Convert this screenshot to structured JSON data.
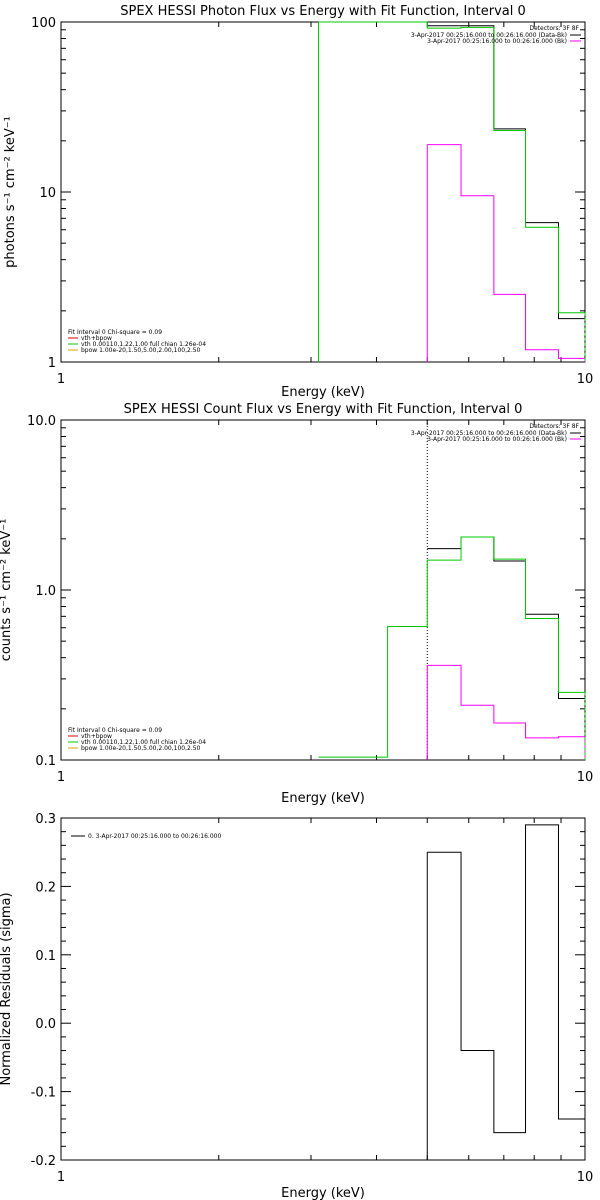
{
  "colors": {
    "data": "#000000",
    "background": "#ff00ff",
    "fit_total": "#00c800",
    "vth": "#00c800",
    "vth_line": "#e00000",
    "bpow": "#e0a000",
    "frame": "#000000"
  },
  "chart_data": [
    {
      "type": "line",
      "title": "SPEX HESSI Photon Flux vs Energy with Fit Function, Interval 0",
      "xlabel": "Energy (keV)",
      "ylabel": "photons s⁻¹ cm⁻² keV⁻¹",
      "xscale": "log",
      "yscale": "log",
      "xlim": [
        1,
        10
      ],
      "ylim": [
        1,
        100
      ],
      "xticks": [
        {
          "v": 1,
          "label": "1"
        },
        {
          "v": 10,
          "label": "10"
        }
      ],
      "yticks": [
        {
          "v": 1,
          "label": "1"
        },
        {
          "v": 10,
          "label": "10"
        },
        {
          "v": 100,
          "label": "100"
        }
      ],
      "legend_top_right": {
        "header": "Detectors: 3F 8F",
        "entries": [
          {
            "label": "3-Apr-2017 00:25:16.000 to 00:26:16.000 (Data-Bk)",
            "color": "#000000"
          },
          {
            "label": "3-Apr-2017 00:25:16.000 to 00:26:16.000 (Bk)",
            "color": "#ff00ff"
          }
        ]
      },
      "legend_bottom_left": {
        "header": "Fit Interval 0   Chi-square = 0.09",
        "entries": [
          {
            "label": "vth+bpow",
            "color": "#e00000"
          },
          {
            "label": "vth 0.00110,1.22,1.00  full chian 1.26e-04",
            "color": "#00c800"
          },
          {
            "label": "bpow 1.00e-20,1.50,5.00,2.00,100,2.50",
            "color": "#e0a000"
          }
        ]
      },
      "series": [
        {
          "name": "Data-Bk",
          "color": "#000000",
          "steps": [
            [
              5.0,
              5.8,
              95
            ],
            [
              5.8,
              6.7,
              95
            ],
            [
              6.7,
              7.7,
              23.5
            ],
            [
              7.7,
              8.9,
              6.6
            ],
            [
              8.9,
              10.0,
              1.8
            ]
          ],
          "vlines": []
        },
        {
          "name": "Bk",
          "color": "#ff00ff",
          "steps": [
            [
              5.0,
              5.8,
              19
            ],
            [
              5.8,
              6.7,
              9.5
            ],
            [
              6.7,
              7.7,
              2.5
            ],
            [
              7.7,
              8.9,
              1.18
            ],
            [
              8.9,
              10.0,
              1.05
            ]
          ],
          "vlines": [
            5.0
          ]
        },
        {
          "name": "vth+bpow",
          "color": "#00c800",
          "steps": [
            [
              3.1,
              5.0,
              100
            ],
            [
              5.0,
              5.8,
              92
            ],
            [
              5.8,
              6.7,
              93
            ],
            [
              6.7,
              7.7,
              23
            ],
            [
              7.7,
              8.9,
              6.2
            ],
            [
              8.9,
              10.0,
              1.95
            ]
          ],
          "vlines": [
            3.1
          ]
        }
      ]
    },
    {
      "type": "line",
      "title": "SPEX HESSI Count Flux vs Energy with Fit Function, Interval 0",
      "xlabel": "Energy (keV)",
      "ylabel": "counts s⁻¹ cm⁻² keV⁻¹",
      "xscale": "log",
      "yscale": "log",
      "xlim": [
        1,
        10
      ],
      "ylim": [
        0.1,
        10
      ],
      "xticks": [
        {
          "v": 1,
          "label": "1"
        },
        {
          "v": 10,
          "label": "10"
        }
      ],
      "yticks": [
        {
          "v": 0.1,
          "label": "0.1"
        },
        {
          "v": 1,
          "label": "1.0"
        },
        {
          "v": 10,
          "label": "10.0"
        }
      ],
      "legend_top_right": {
        "header": "Detectors: 3F 8F",
        "entries": [
          {
            "label": "3-Apr-2017 00:25:16.000 to 00:26:16.000 (Data-Bk)",
            "color": "#000000"
          },
          {
            "label": "3-Apr-2017 00:25:16.000 to 00:26:16.000 (Bk)",
            "color": "#ff00ff"
          }
        ]
      },
      "legend_bottom_left": {
        "header": "Fit Interval 0   Chi-square = 0.09",
        "entries": [
          {
            "label": "vth+bpow",
            "color": "#e00000"
          },
          {
            "label": "vth 0.00110,1.22,1.00  full chian 1.26e-04",
            "color": "#00c800"
          },
          {
            "label": "bpow 1.00e-20,1.50,5.00,2.00,100,2.50",
            "color": "#e0a000"
          }
        ]
      },
      "series": [
        {
          "name": "Data-Bk",
          "color": "#000000",
          "steps": [
            [
              5.0,
              5.8,
              1.75
            ],
            [
              5.8,
              6.7,
              2.05
            ],
            [
              6.7,
              7.7,
              1.48
            ],
            [
              7.7,
              8.9,
              0.72
            ],
            [
              8.9,
              10.0,
              0.23
            ]
          ],
          "vlines": []
        },
        {
          "name": "Bk",
          "color": "#ff00ff",
          "steps": [
            [
              5.0,
              5.8,
              0.36
            ],
            [
              5.8,
              6.7,
              0.21
            ],
            [
              6.7,
              7.7,
              0.165
            ],
            [
              7.7,
              8.9,
              0.135
            ],
            [
              8.9,
              10.0,
              0.137
            ]
          ],
          "vlines": [
            5.0
          ]
        },
        {
          "name": "vth+bpow",
          "color": "#00c800",
          "steps": [
            [
              3.1,
              4.2,
              0.104
            ],
            [
              4.2,
              5.0,
              0.61
            ],
            [
              5.0,
              5.8,
              1.5
            ],
            [
              5.8,
              6.7,
              2.05
            ],
            [
              6.7,
              7.7,
              1.52
            ],
            [
              7.7,
              8.9,
              0.68
            ],
            [
              8.9,
              10.0,
              0.25
            ]
          ],
          "vlines": []
        }
      ],
      "dotted_vline": 5.0
    },
    {
      "type": "line",
      "title": "",
      "xlabel": "Energy (keV)",
      "ylabel": "Normalized Residuals (sigma)",
      "xscale": "log",
      "yscale": "linear",
      "xlim": [
        1,
        10
      ],
      "ylim": [
        -0.2,
        0.3
      ],
      "xticks": [
        {
          "v": 1,
          "label": "1"
        },
        {
          "v": 10,
          "label": "10"
        }
      ],
      "yticks": [
        {
          "v": -0.2,
          "label": "-0.2"
        },
        {
          "v": -0.1,
          "label": "-0.1"
        },
        {
          "v": 0.0,
          "label": "0.0"
        },
        {
          "v": 0.1,
          "label": "0.1"
        },
        {
          "v": 0.2,
          "label": "0.2"
        },
        {
          "v": 0.3,
          "label": "0.3"
        }
      ],
      "legend_top_left": {
        "entries": [
          {
            "label": "0. 3-Apr-2017 00:25:16.000 to 00:26:16.000",
            "color": "#000000"
          }
        ]
      },
      "series": [
        {
          "name": "Residuals",
          "color": "#000000",
          "steps": [
            [
              5.0,
              5.8,
              0.25
            ],
            [
              5.8,
              6.7,
              -0.04
            ],
            [
              6.7,
              7.7,
              -0.16
            ],
            [
              7.7,
              8.9,
              0.29
            ],
            [
              8.9,
              10.0,
              -0.14
            ]
          ],
          "vlines": [
            5.0
          ]
        }
      ]
    }
  ]
}
